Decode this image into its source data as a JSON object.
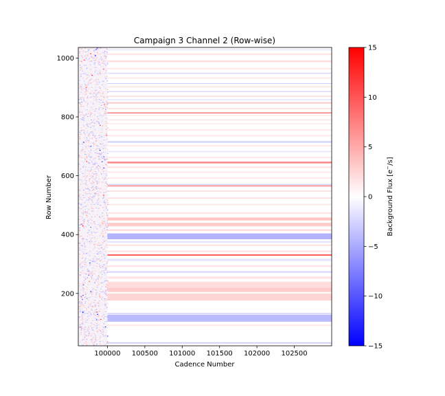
{
  "chart_data": {
    "type": "heatmap",
    "title": "Campaign 3 Channel 2 (Row-wise)",
    "xlabel": "Cadence Number",
    "ylabel": "Row Number",
    "xlim": [
      99610,
      103000
    ],
    "ylim": [
      22,
      1036
    ],
    "xticks": [
      100000,
      100500,
      101000,
      101500,
      102000,
      102500
    ],
    "yticks": [
      200,
      400,
      600,
      800,
      1000
    ],
    "noisy_segment_end_cadence": 100000,
    "colorbar": {
      "label": "Background Flux [e$^-$/s]",
      "label_text": "Background Flux [e",
      "label_sup": "−",
      "label_tail": "/s]",
      "vmin": -15,
      "vmax": 15,
      "ticks": [
        -15,
        -10,
        -5,
        0,
        5,
        10,
        15
      ],
      "tick_labels": [
        "−15",
        "−10",
        "−5",
        "0",
        "5",
        "10",
        "15"
      ],
      "colormap": "bwr",
      "low_color": "#0000ff",
      "mid_color": "#ffffff",
      "high_color": "#ff0000"
    },
    "row_bands": [
      {
        "row_start": 22,
        "row_end": 30,
        "value": 0.4
      },
      {
        "row_start": 30,
        "row_end": 34,
        "value": -3.0
      },
      {
        "row_start": 90,
        "row_end": 94,
        "value": 1.5
      },
      {
        "row_start": 104,
        "row_end": 128,
        "value": -4.0
      },
      {
        "row_start": 130,
        "row_end": 134,
        "value": -2.5
      },
      {
        "row_start": 176,
        "row_end": 200,
        "value": 2.5
      },
      {
        "row_start": 205,
        "row_end": 220,
        "value": 3.0
      },
      {
        "row_start": 220,
        "row_end": 240,
        "value": 2.0
      },
      {
        "row_start": 250,
        "row_end": 258,
        "value": 1.5
      },
      {
        "row_start": 270,
        "row_end": 276,
        "value": -2.0
      },
      {
        "row_start": 290,
        "row_end": 296,
        "value": 1.5
      },
      {
        "row_start": 310,
        "row_end": 318,
        "value": -1.5
      },
      {
        "row_start": 329,
        "row_end": 332,
        "value": 15.0
      },
      {
        "row_start": 340,
        "row_end": 346,
        "value": 1.5
      },
      {
        "row_start": 362,
        "row_end": 366,
        "value": 2.0
      },
      {
        "row_start": 372,
        "row_end": 378,
        "value": -1.5
      },
      {
        "row_start": 384,
        "row_end": 404,
        "value": -4.5
      },
      {
        "row_start": 412,
        "row_end": 418,
        "value": 2.0
      },
      {
        "row_start": 428,
        "row_end": 440,
        "value": 3.0
      },
      {
        "row_start": 448,
        "row_end": 458,
        "value": 3.5
      },
      {
        "row_start": 470,
        "row_end": 476,
        "value": 1.5
      },
      {
        "row_start": 500,
        "row_end": 504,
        "value": 1.5
      },
      {
        "row_start": 522,
        "row_end": 526,
        "value": 2.0
      },
      {
        "row_start": 546,
        "row_end": 550,
        "value": 2.0
      },
      {
        "row_start": 563,
        "row_end": 568,
        "value": 5.5
      },
      {
        "row_start": 568,
        "row_end": 572,
        "value": -2.5
      },
      {
        "row_start": 590,
        "row_end": 594,
        "value": 1.5
      },
      {
        "row_start": 610,
        "row_end": 614,
        "value": 1.5
      },
      {
        "row_start": 626,
        "row_end": 632,
        "value": 1.5
      },
      {
        "row_start": 642,
        "row_end": 648,
        "value": 7.0
      },
      {
        "row_start": 660,
        "row_end": 664,
        "value": 1.5
      },
      {
        "row_start": 680,
        "row_end": 684,
        "value": -1.5
      },
      {
        "row_start": 700,
        "row_end": 704,
        "value": 1.5
      },
      {
        "row_start": 712,
        "row_end": 718,
        "value": -2.5
      },
      {
        "row_start": 734,
        "row_end": 738,
        "value": 1.5
      },
      {
        "row_start": 754,
        "row_end": 758,
        "value": 1.5
      },
      {
        "row_start": 775,
        "row_end": 778,
        "value": 1.5
      },
      {
        "row_start": 788,
        "row_end": 792,
        "value": 1.5
      },
      {
        "row_start": 804,
        "row_end": 806,
        "value": 2.0
      },
      {
        "row_start": 812,
        "row_end": 815,
        "value": 9.0
      },
      {
        "row_start": 826,
        "row_end": 830,
        "value": 2.0
      },
      {
        "row_start": 845,
        "row_end": 850,
        "value": 3.0
      },
      {
        "row_start": 857,
        "row_end": 860,
        "value": -2.0
      },
      {
        "row_start": 868,
        "row_end": 872,
        "value": 2.0
      },
      {
        "row_start": 884,
        "row_end": 888,
        "value": -2.0
      },
      {
        "row_start": 900,
        "row_end": 904,
        "value": 1.5
      },
      {
        "row_start": 912,
        "row_end": 914,
        "value": -3.5
      },
      {
        "row_start": 930,
        "row_end": 934,
        "value": 1.5
      },
      {
        "row_start": 946,
        "row_end": 950,
        "value": -2.0
      },
      {
        "row_start": 962,
        "row_end": 966,
        "value": 1.5
      },
      {
        "row_start": 986,
        "row_end": 992,
        "value": 2.0
      },
      {
        "row_start": 1010,
        "row_end": 1016,
        "value": 1.5
      },
      {
        "row_start": 1026,
        "row_end": 1030,
        "value": -1.5
      }
    ]
  }
}
